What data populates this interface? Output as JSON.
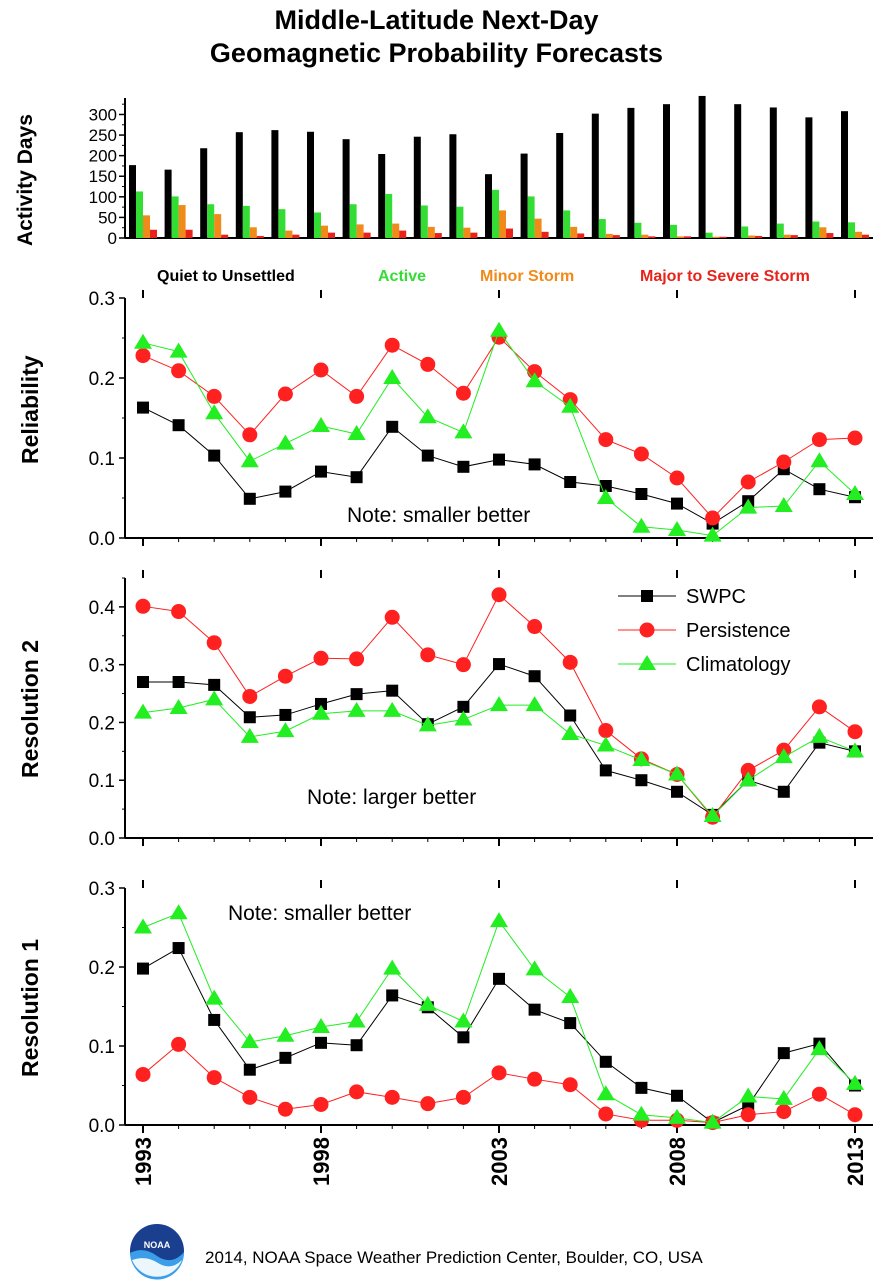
{
  "title_line1": "Middle-Latitude Next-Day",
  "title_line2": "Geomagnetic Probability Forecasts",
  "footer": "2014, NOAA Space Weather Prediction Center, Boulder, CO, USA",
  "logo_text": "NOAA",
  "colors": {
    "quiet": "#000000",
    "active": "#33dd33",
    "minor": "#f08a1a",
    "major": "#e8231c",
    "swpc": "#000000",
    "persistence": "#ff2020",
    "climatology": "#22ee22"
  },
  "chart_data": [
    {
      "id": "activity",
      "type": "bar",
      "ylabel": "Activity Days",
      "ylim": [
        0,
        340
      ],
      "yticks": [
        0,
        50,
        100,
        150,
        200,
        250,
        300
      ],
      "categories": [
        1993,
        1994,
        1995,
        1996,
        1997,
        1998,
        1999,
        2000,
        2001,
        2002,
        2003,
        2004,
        2005,
        2006,
        2007,
        2008,
        2009,
        2010,
        2011,
        2012,
        2013
      ],
      "series": [
        {
          "name": "Quiet to Unsettled",
          "color_key": "quiet",
          "values": [
            177,
            166,
            218,
            257,
            262,
            258,
            240,
            204,
            246,
            252,
            155,
            205,
            255,
            302,
            316,
            325,
            345,
            325,
            317,
            293,
            308
          ]
        },
        {
          "name": "Active",
          "color_key": "active",
          "values": [
            113,
            101,
            82,
            78,
            70,
            62,
            82,
            107,
            79,
            76,
            117,
            101,
            67,
            46,
            37,
            32,
            13,
            28,
            35,
            40,
            38
          ]
        },
        {
          "name": "Minor Storm",
          "color_key": "minor",
          "values": [
            55,
            80,
            58,
            26,
            18,
            30,
            33,
            35,
            27,
            25,
            67,
            47,
            27,
            10,
            8,
            4,
            3,
            6,
            8,
            26,
            15
          ]
        },
        {
          "name": "Major to Severe Storm",
          "color_key": "major",
          "values": [
            20,
            20,
            8,
            5,
            8,
            13,
            13,
            18,
            12,
            13,
            23,
            15,
            11,
            7,
            4,
            4,
            3,
            5,
            7,
            12,
            8
          ]
        }
      ]
    },
    {
      "id": "reliability",
      "type": "line",
      "ylabel": "Reliability",
      "ylim": [
        0,
        0.3
      ],
      "yticks": [
        "0.0",
        "0.1",
        "0.2",
        "0.3"
      ],
      "annotation": "Note: smaller better",
      "x": [
        1993,
        1994,
        1995,
        1996,
        1997,
        1998,
        1999,
        2000,
        2001,
        2002,
        2003,
        2004,
        2005,
        2006,
        2007,
        2008,
        2009,
        2010,
        2011,
        2012,
        2013
      ],
      "series": [
        {
          "name": "SWPC",
          "color_key": "swpc",
          "marker": "square",
          "values": [
            0.163,
            0.141,
            0.103,
            0.049,
            0.058,
            0.083,
            0.076,
            0.139,
            0.103,
            0.089,
            0.098,
            0.092,
            0.07,
            0.065,
            0.055,
            0.043,
            0.018,
            0.046,
            0.086,
            0.061,
            0.051
          ]
        },
        {
          "name": "Persistence",
          "color_key": "persistence",
          "marker": "circle",
          "values": [
            0.228,
            0.209,
            0.177,
            0.129,
            0.18,
            0.21,
            0.177,
            0.241,
            0.217,
            0.181,
            0.251,
            0.208,
            0.173,
            0.123,
            0.105,
            0.075,
            0.025,
            0.07,
            0.095,
            0.123,
            0.125
          ]
        },
        {
          "name": "Climatology",
          "color_key": "climatology",
          "marker": "triangle",
          "values": [
            0.244,
            0.233,
            0.156,
            0.096,
            0.118,
            0.14,
            0.13,
            0.2,
            0.151,
            0.132,
            0.259,
            0.196,
            0.164,
            0.05,
            0.014,
            0.01,
            0.003,
            0.038,
            0.04,
            0.096,
            0.055
          ]
        }
      ]
    },
    {
      "id": "resolution2",
      "type": "line",
      "ylabel": "Resolution 2",
      "ylim": [
        0,
        0.45
      ],
      "yticks": [
        "0.0",
        "0.1",
        "0.2",
        "0.3",
        "0.4"
      ],
      "annotation": "Note: larger better",
      "legend": [
        "SWPC",
        "Persistence",
        "Climatology"
      ],
      "x": [
        1993,
        1994,
        1995,
        1996,
        1997,
        1998,
        1999,
        2000,
        2001,
        2002,
        2003,
        2004,
        2005,
        2006,
        2007,
        2008,
        2009,
        2010,
        2011,
        2012,
        2013
      ],
      "series": [
        {
          "name": "SWPC",
          "color_key": "swpc",
          "marker": "square",
          "values": [
            0.27,
            0.27,
            0.265,
            0.209,
            0.213,
            0.232,
            0.249,
            0.255,
            0.197,
            0.227,
            0.301,
            0.28,
            0.212,
            0.117,
            0.1,
            0.08,
            0.04,
            0.1,
            0.08,
            0.165,
            0.15
          ]
        },
        {
          "name": "Persistence",
          "color_key": "persistence",
          "marker": "circle",
          "values": [
            0.401,
            0.392,
            0.338,
            0.245,
            0.28,
            0.311,
            0.31,
            0.382,
            0.317,
            0.3,
            0.421,
            0.366,
            0.304,
            0.186,
            0.137,
            0.11,
            0.036,
            0.117,
            0.152,
            0.227,
            0.184
          ]
        },
        {
          "name": "Climatology",
          "color_key": "climatology",
          "marker": "triangle",
          "values": [
            0.217,
            0.225,
            0.24,
            0.175,
            0.185,
            0.215,
            0.22,
            0.22,
            0.195,
            0.205,
            0.23,
            0.23,
            0.18,
            0.16,
            0.135,
            0.11,
            0.038,
            0.1,
            0.14,
            0.175,
            0.15
          ]
        }
      ]
    },
    {
      "id": "resolution1",
      "type": "line",
      "ylabel": "Resolution 1",
      "ylim": [
        0,
        0.3
      ],
      "yticks": [
        "0.0",
        "0.1",
        "0.2",
        "0.3"
      ],
      "annotation": "Note: smaller better",
      "x": [
        1993,
        1994,
        1995,
        1996,
        1997,
        1998,
        1999,
        2000,
        2001,
        2002,
        2003,
        2004,
        2005,
        2006,
        2007,
        2008,
        2009,
        2010,
        2011,
        2012,
        2013
      ],
      "xticks": [
        "1993",
        "1998",
        "2003",
        "2008",
        "2013"
      ],
      "series": [
        {
          "name": "SWPC",
          "color_key": "swpc",
          "marker": "square",
          "values": [
            0.198,
            0.224,
            0.133,
            0.07,
            0.085,
            0.104,
            0.101,
            0.164,
            0.149,
            0.111,
            0.185,
            0.146,
            0.129,
            0.08,
            0.047,
            0.037,
            0.003,
            0.025,
            0.091,
            0.103,
            0.05
          ]
        },
        {
          "name": "Persistence",
          "color_key": "persistence",
          "marker": "circle",
          "values": [
            0.064,
            0.102,
            0.06,
            0.035,
            0.02,
            0.026,
            0.042,
            0.035,
            0.027,
            0.035,
            0.066,
            0.058,
            0.051,
            0.014,
            0.006,
            0.006,
            0.003,
            0.013,
            0.017,
            0.039,
            0.013
          ]
        },
        {
          "name": "Climatology",
          "color_key": "climatology",
          "marker": "triangle",
          "values": [
            0.25,
            0.268,
            0.16,
            0.105,
            0.113,
            0.124,
            0.131,
            0.198,
            0.152,
            0.131,
            0.258,
            0.197,
            0.162,
            0.039,
            0.013,
            0.009,
            0.003,
            0.036,
            0.033,
            0.096,
            0.052
          ]
        }
      ]
    }
  ]
}
